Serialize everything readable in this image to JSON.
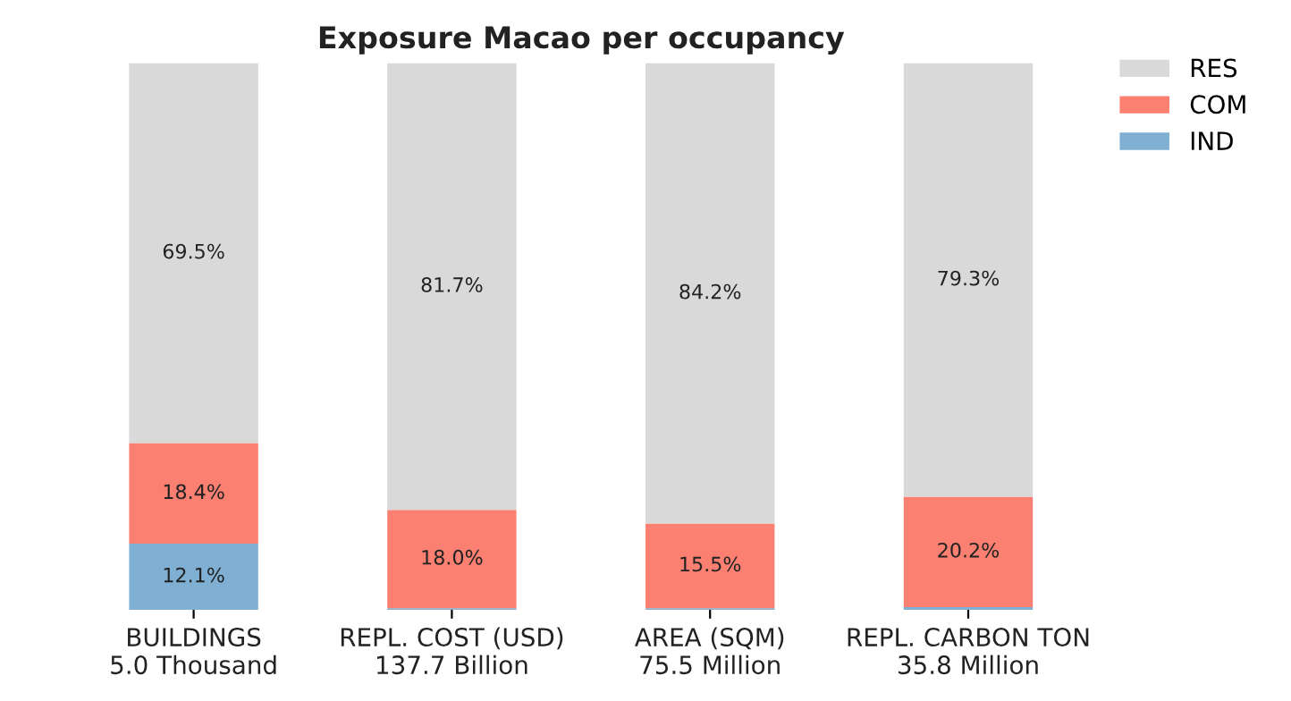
{
  "chart_data": {
    "type": "bar",
    "title": "Exposure Macao per occupancy",
    "stacked": true,
    "tick_labels": "x",
    "legend": "top right",
    "grid": false,
    "categories": [
      "BUILDINGS\n5.0 Thousand",
      "REPL. COST (USD)\n137.7 Billion",
      "AREA (SQM)\n75.5 Million",
      "REPL. CARBON TON\n35.8 Million"
    ],
    "series": [
      {
        "name": "IND",
        "color": "#7fb0d3",
        "values": [
          12.1,
          0.3,
          0.3,
          0.5
        ],
        "value_labels": [
          "12.1%",
          null,
          null,
          null
        ]
      },
      {
        "name": "COM",
        "color": "#fb8072",
        "values": [
          18.4,
          18.0,
          15.5,
          20.2
        ],
        "value_labels": [
          "18.4%",
          "18.0%",
          "15.5%",
          "20.2%"
        ]
      },
      {
        "name": "RES",
        "color": "#d9d9d9",
        "values": [
          69.5,
          81.7,
          84.2,
          79.3
        ],
        "value_labels": [
          "69.5%",
          "81.7%",
          "84.2%",
          "79.3%"
        ]
      }
    ]
  }
}
